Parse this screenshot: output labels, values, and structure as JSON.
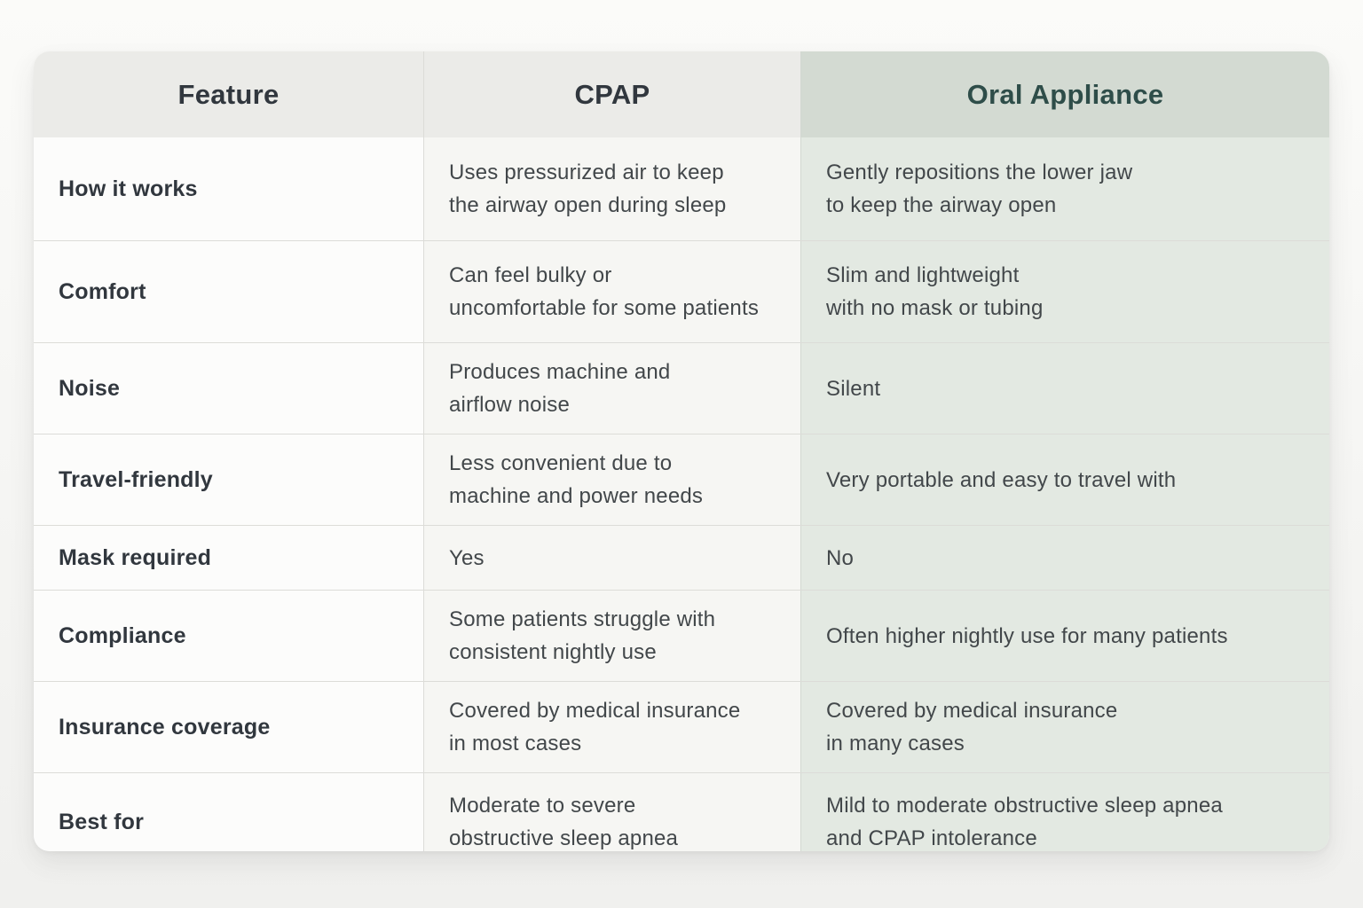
{
  "table": {
    "columns": [
      {
        "label": "Feature"
      },
      {
        "label": "CPAP"
      },
      {
        "label": "Oral Appliance"
      }
    ],
    "rows": [
      {
        "feature": "How it works",
        "cpap": "Uses pressurized air to keep\nthe airway open during sleep",
        "oral": "Gently repositions the lower jaw\nto keep the airway open"
      },
      {
        "feature": "Comfort",
        "cpap": "Can feel bulky or\nuncomfortable for some patients",
        "oral": "Slim and lightweight\nwith no mask or tubing"
      },
      {
        "feature": "Noise",
        "cpap": "Produces machine and\nairflow noise",
        "oral": "Silent"
      },
      {
        "feature": "Travel-friendly",
        "cpap": "Less convenient due to\nmachine and power needs",
        "oral": "Very portable and easy to travel with"
      },
      {
        "feature": "Mask required",
        "cpap": "Yes",
        "oral": "No"
      },
      {
        "feature": "Compliance",
        "cpap": "Some patients struggle with\nconsistent nightly use",
        "oral": "Often higher nightly use for many patients"
      },
      {
        "feature": "Insurance coverage",
        "cpap": "Covered by medical insurance\nin most cases",
        "oral": "Covered by medical insurance\nin many cases"
      },
      {
        "feature": "Best for",
        "cpap": "Moderate to severe\nobstructive sleep apnea",
        "oral": "Mild to moderate obstructive sleep apnea\nand CPAP intolerance"
      }
    ]
  },
  "colors": {
    "accent_teal": "#2e4d49",
    "oral_header_bg": "#d3dad2",
    "oral_column_bg": "#e3e9e2",
    "header_bg": "#ebebe8",
    "text_dark": "#31373e"
  }
}
